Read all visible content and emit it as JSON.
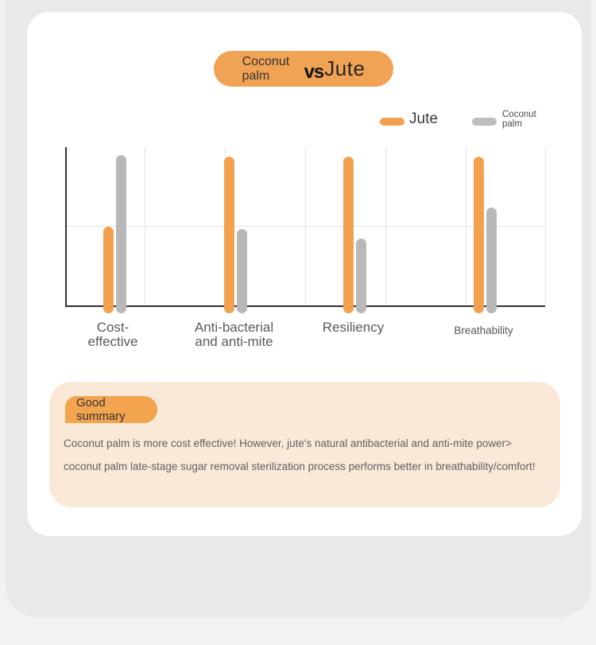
{
  "header": {
    "left_label": "Coconut palm",
    "vs_label": "vs",
    "right_label": "Jute"
  },
  "legend": [
    {
      "label": "Jute",
      "color": "#f2a24e"
    },
    {
      "label": "Coconut palm",
      "color": "#bdbdbd"
    }
  ],
  "chart_data": {
    "type": "bar",
    "title": "Coconut palm vs Jute",
    "categories": [
      {
        "lines": [
          "Cost-",
          "effective"
        ]
      },
      {
        "lines": [
          "Anti-bacterial",
          "and anti-mite"
        ]
      },
      {
        "lines": [
          "Resiliency"
        ]
      },
      {
        "lines": [
          "Breathability"
        ],
        "small": true
      }
    ],
    "series": [
      {
        "name": "Jute",
        "color": "#f2a24e",
        "values": [
          50,
          94,
          94,
          94
        ]
      },
      {
        "name": "Coconut palm",
        "color": "#b8b8b8",
        "values": [
          95,
          48,
          42,
          62
        ]
      }
    ],
    "ylim": [
      0,
      100
    ],
    "gridlines_horizontal_at": [
      50
    ],
    "grid": "light vertical splits, one horizontal midline",
    "legend_position": "top-right",
    "xlabel": "",
    "ylabel": ""
  },
  "summary": {
    "badge": "Good summary",
    "text": "Coconut palm is more cost effective! However, jute's natural antibacterial and anti-mite power> coconut palm late-stage sugar removal sterilization process performs better in breathability/comfort!"
  },
  "colors": {
    "accent_orange": "#f2a24e",
    "neutral_gray_bar": "#b8b8b8",
    "card_white": "#ffffff",
    "container_gray": "#e9e9e9",
    "page_background": "#f2f2f3",
    "summary_peach": "#fbe9d7",
    "axis_dark": "#303030"
  }
}
